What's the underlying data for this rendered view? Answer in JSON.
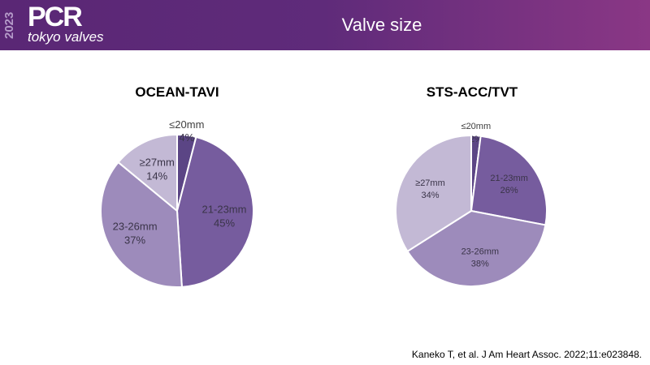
{
  "header": {
    "logo_year": "2023",
    "logo_main": "PCR",
    "logo_sub": "tokyo valves",
    "title": "Valve size"
  },
  "chart_data": [
    {
      "type": "pie",
      "title": "OCEAN-TAVI",
      "categories": [
        "≤20mm",
        "21-23mm",
        "23-26mm",
        "≥27mm"
      ],
      "values": [
        4,
        45,
        37,
        14
      ],
      "labels": [
        "4%",
        "45%",
        "37%",
        "14%"
      ]
    },
    {
      "type": "pie",
      "title": "STS-ACC/TVT",
      "categories": [
        "≤20mm",
        "21-23mm",
        "23-26mm",
        "≥27mm"
      ],
      "values": [
        2,
        26,
        38,
        34
      ],
      "labels": [
        "2%",
        "26%",
        "38%",
        "34%"
      ]
    }
  ],
  "colors": [
    "#5b4585",
    "#765c9e",
    "#9d8bbb",
    "#c3b9d5"
  ],
  "citation": "Kaneko T, et al. J Am Heart Assoc. 2022;11:e023848."
}
